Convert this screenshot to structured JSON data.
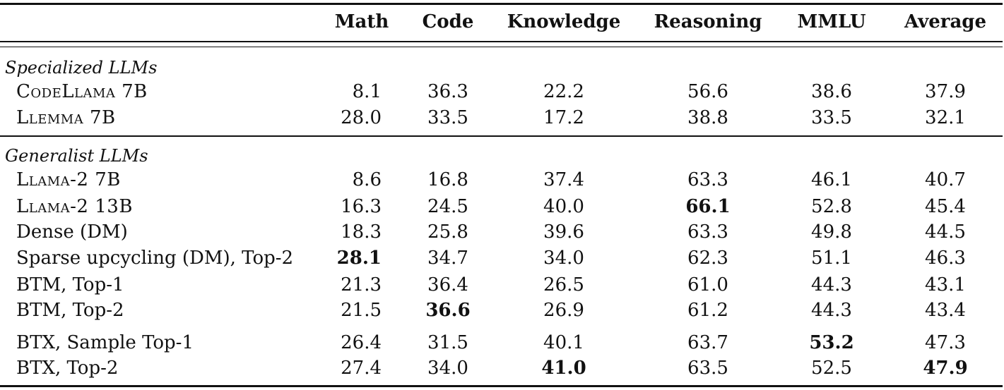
{
  "columns": [
    "Math",
    "Code",
    "Knowledge",
    "Reasoning",
    "MMLU",
    "Average"
  ],
  "groups": [
    {
      "title": "Specialized LLMs",
      "rows": [
        {
          "model": "CodeLlama 7B",
          "values": [
            "8.1",
            "36.3",
            "22.2",
            "56.6",
            "38.6",
            "37.9"
          ]
        },
        {
          "model": "Llemma 7B",
          "values": [
            "28.0",
            "33.5",
            "17.2",
            "38.8",
            "33.5",
            "32.1"
          ]
        }
      ]
    },
    {
      "title": "Generalist LLMs",
      "rows": [
        {
          "model": "Llama-2 7B",
          "values": [
            "8.6",
            "16.8",
            "37.4",
            "63.3",
            "46.1",
            "40.7"
          ]
        },
        {
          "model": "Llama-2 13B",
          "values": [
            "16.3",
            "24.5",
            "40.0",
            "66.1",
            "52.8",
            "45.4"
          ]
        },
        {
          "model": "Dense (DM)",
          "values": [
            "18.3",
            "25.8",
            "39.6",
            "63.3",
            "49.8",
            "44.5"
          ]
        },
        {
          "model": "Sparse upcycling (DM), Top-2",
          "values": [
            "28.1",
            "34.7",
            "34.0",
            "62.3",
            "51.1",
            "46.3"
          ]
        },
        {
          "model": "BTM, Top-1",
          "values": [
            "21.3",
            "36.4",
            "26.5",
            "61.0",
            "44.3",
            "43.1"
          ]
        },
        {
          "model": "BTM, Top-2",
          "values": [
            "21.5",
            "36.6",
            "26.9",
            "61.2",
            "44.3",
            "43.4"
          ]
        },
        {
          "model": "BTX, Sample Top-1",
          "values": [
            "26.4",
            "31.5",
            "40.1",
            "63.7",
            "53.2",
            "47.3"
          ]
        },
        {
          "model": "BTX, Top-2",
          "values": [
            "27.4",
            "34.0",
            "41.0",
            "63.5",
            "52.5",
            "47.9"
          ]
        }
      ]
    }
  ],
  "bold_cells": {
    "Llama-2 13B": [
      "Reasoning"
    ],
    "Sparse upcycling (DM), Top-2": [
      "Math"
    ],
    "BTM, Top-2": [
      "Code"
    ],
    "BTX, Sample Top-1": [
      "MMLU"
    ],
    "BTX, Top-2": [
      "Knowledge",
      "Average"
    ]
  }
}
